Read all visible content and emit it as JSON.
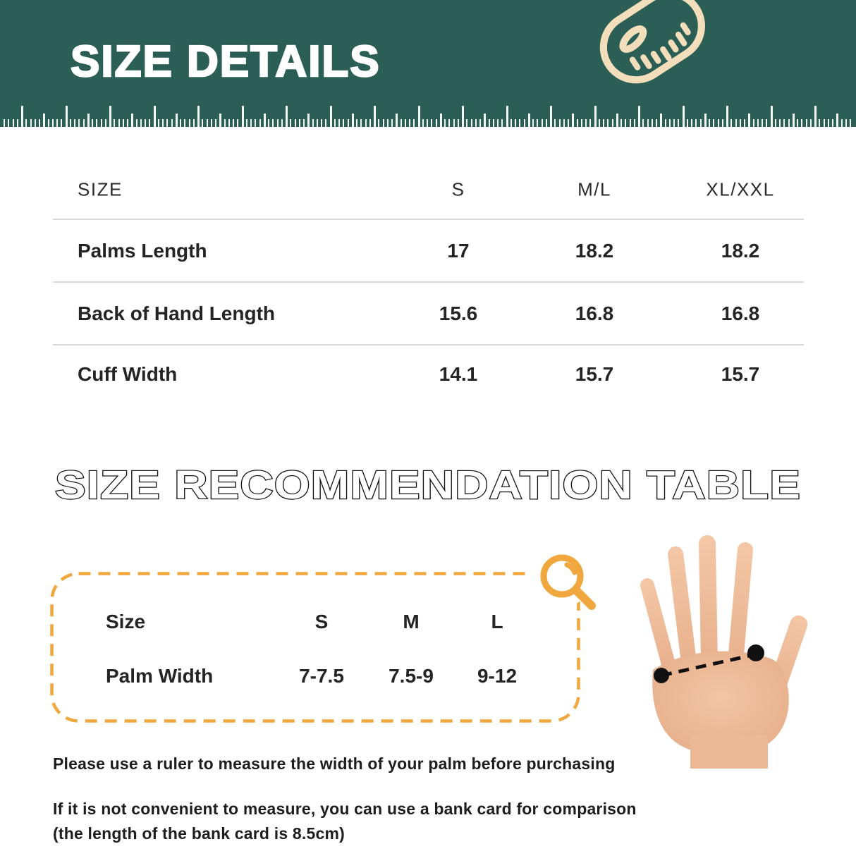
{
  "header": {
    "title": "SIZE DETAILS",
    "icon": "tape-measure-icon"
  },
  "size_table": {
    "columns": [
      "SIZE",
      "S",
      "M/L",
      "XL/XXL"
    ],
    "rows": [
      {
        "label": "Palms Length",
        "values": [
          "17",
          "18.2",
          "18.2"
        ]
      },
      {
        "label": "Back of Hand Length",
        "values": [
          "15.6",
          "16.8",
          "16.8"
        ]
      },
      {
        "label": "Cuff Width",
        "values": [
          "14.1",
          "15.7",
          "15.7"
        ]
      }
    ]
  },
  "recommendation": {
    "title": "SIZE RECOMMENDATION TABLE",
    "icon": "magnifier-icon",
    "rows": [
      {
        "label": "Size",
        "values": [
          "S",
          "M",
          "L"
        ]
      },
      {
        "label": "Palm Width",
        "values": [
          "7-7.5",
          "7.5-9",
          "9-12"
        ]
      }
    ]
  },
  "notes": {
    "line1": "Please use a ruler to measure the width of your palm before purchasing",
    "line2": "If it is not convenient to measure, you can use a bank card for comparison",
    "line3": "(the length of the bank card is 8.5cm)"
  },
  "colors": {
    "band_green": "#2B5E54",
    "accent_orange": "#F0A73E",
    "icon_cream": "#F3DEBB",
    "text_dark": "#222222",
    "separator_gray": "#D9D9D9",
    "measure_black": "#111111"
  }
}
